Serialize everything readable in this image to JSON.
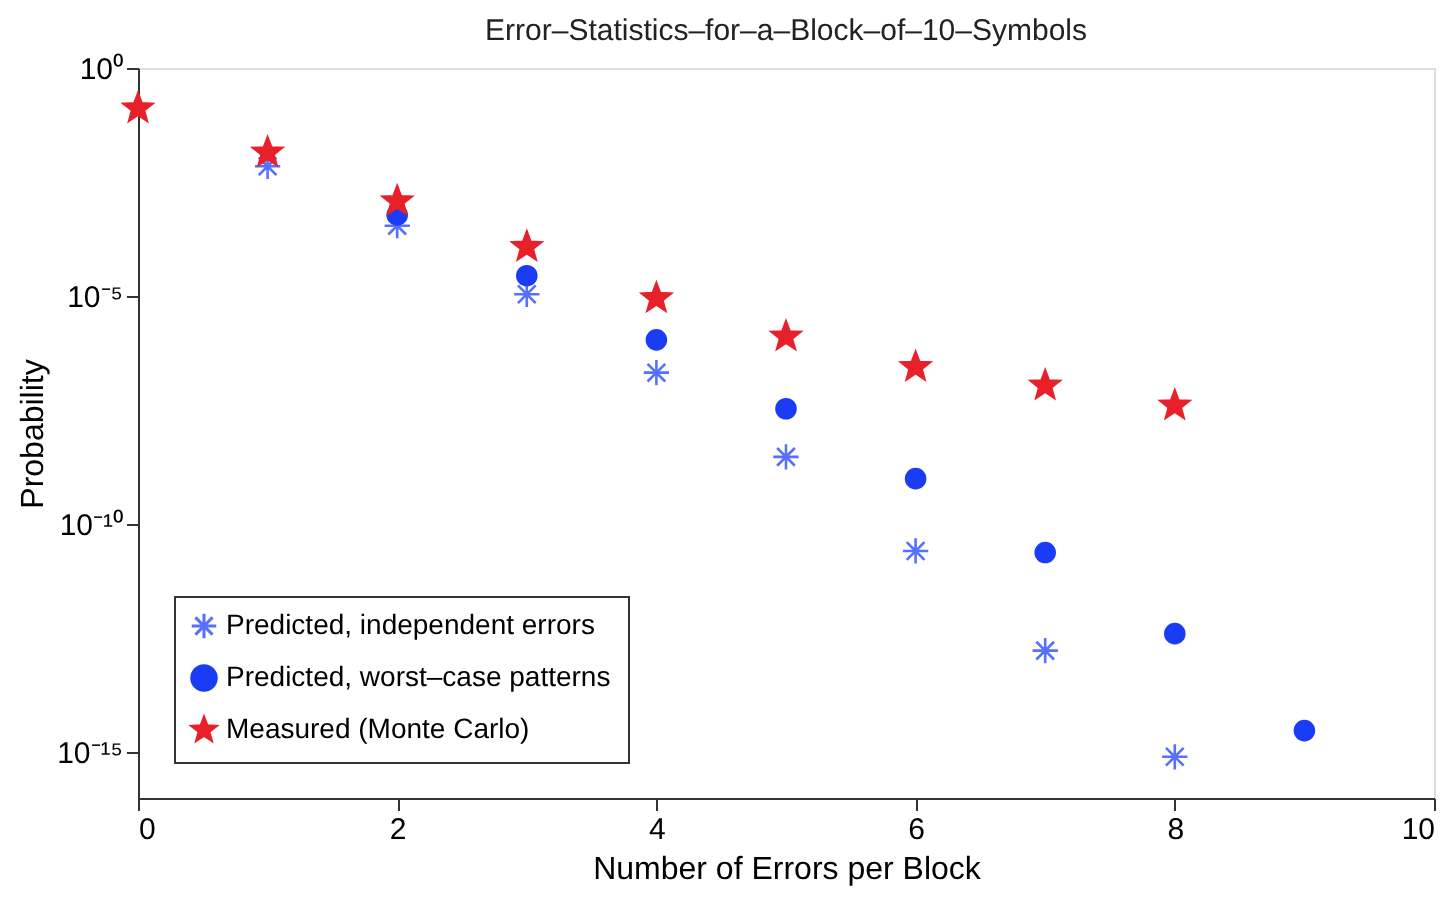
{
  "chart_data": {
    "type": "scatter",
    "title": "Error–Statistics–for–a–Block–of–10–Symbols",
    "xlabel": "Number of Errors per Block",
    "ylabel": "Probability",
    "x": [
      0,
      1,
      2,
      3,
      4,
      5,
      6,
      7,
      8,
      9
    ],
    "series": [
      {
        "name": "Predicted, independent errors",
        "color": "#5670ff",
        "marker": "cross",
        "values": [
          null,
          0.007,
          0.00035,
          1.1e-05,
          2.1e-07,
          3e-09,
          2.6e-11,
          1.7e-13,
          8e-16,
          null
        ]
      },
      {
        "name": "Predicted, worst–case patterns",
        "color": "#1a3cf5",
        "marker": "circle",
        "values": [
          null,
          null,
          0.0006,
          2.8e-05,
          1.1e-06,
          3.4e-08,
          1e-09,
          2.4e-11,
          4e-13,
          3e-15
        ]
      },
      {
        "name": "Measured  (Monte Carlo)",
        "color": "#e8202a",
        "marker": "star",
        "values": [
          0.13,
          0.014,
          0.0012,
          0.00012,
          9e-06,
          1.3e-06,
          2.8e-07,
          1.1e-07,
          4e-08,
          null
        ]
      }
    ],
    "log": "y",
    "xlim": [
      0,
      10
    ],
    "xticks": [
      0,
      2,
      4,
      6,
      8,
      10
    ],
    "ylim": [
      1e-16,
      1
    ],
    "yticks": [
      {
        "value": 1e-15,
        "label": "10⁻¹⁵"
      },
      {
        "value": 1e-10,
        "label": "10⁻¹⁰"
      },
      {
        "value": 1e-05,
        "label": "10⁻⁵"
      },
      {
        "value": 1,
        "label": "10⁰"
      }
    ],
    "grid": false,
    "legend": "bottom left"
  }
}
